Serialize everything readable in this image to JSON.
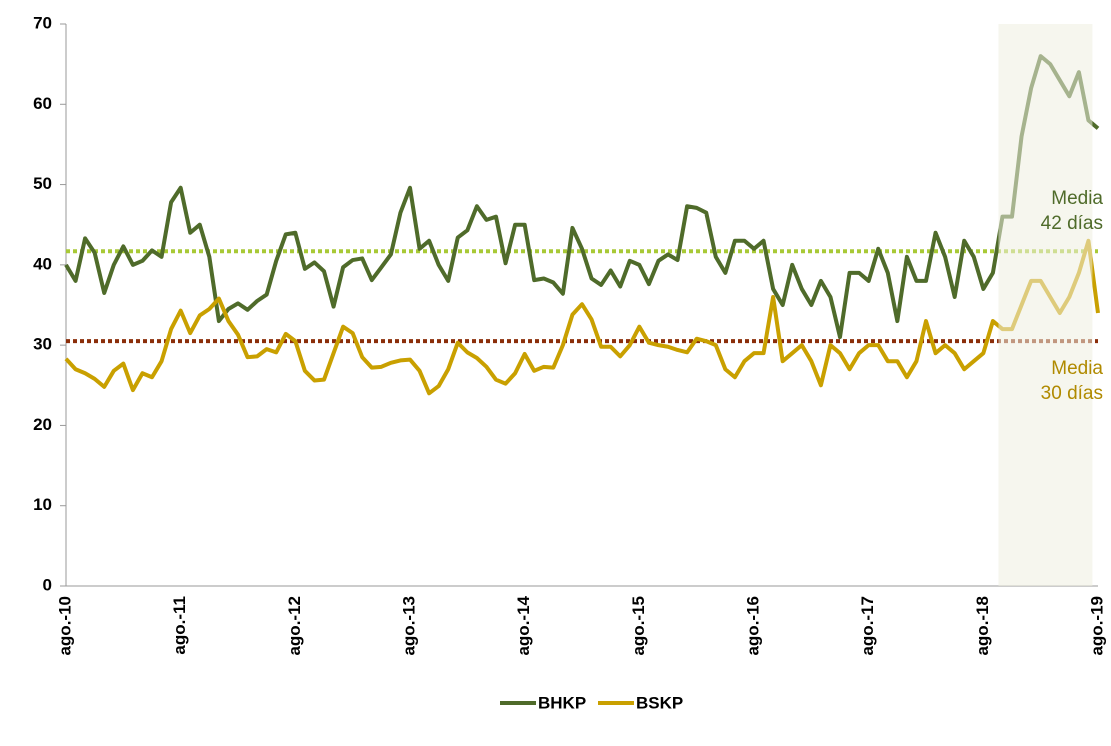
{
  "chart_data": {
    "type": "line",
    "categories": [
      "ago.-10",
      null,
      null,
      null,
      null,
      null,
      null,
      null,
      null,
      null,
      null,
      null,
      "ago.-11",
      null,
      null,
      null,
      null,
      null,
      null,
      null,
      null,
      null,
      null,
      null,
      "ago.-12",
      null,
      null,
      null,
      null,
      null,
      null,
      null,
      null,
      null,
      null,
      null,
      "ago.-13",
      null,
      null,
      null,
      null,
      null,
      null,
      null,
      null,
      null,
      null,
      null,
      "ago.-14",
      null,
      null,
      null,
      null,
      null,
      null,
      null,
      null,
      null,
      null,
      null,
      "ago.-15",
      null,
      null,
      null,
      null,
      null,
      null,
      null,
      null,
      null,
      null,
      null,
      "ago.-16",
      null,
      null,
      null,
      null,
      null,
      null,
      null,
      null,
      null,
      null,
      null,
      "ago.-17",
      null,
      null,
      null,
      null,
      null,
      null,
      null,
      null,
      null,
      null,
      null,
      "ago.-18",
      null,
      null,
      null,
      null,
      null,
      null,
      null,
      null,
      null,
      null,
      null,
      "ago.-19"
    ],
    "series": [
      {
        "name": "BHKP",
        "color": "#4f6b2a",
        "values": [
          40,
          38,
          43.3,
          41.5,
          36.5,
          40,
          42.3,
          40,
          40.5,
          41.8,
          41,
          47.8,
          49.6,
          44,
          45,
          41,
          33,
          34.5,
          35.2,
          34.4,
          35.5,
          36.3,
          40.5,
          43.8,
          44,
          39.5,
          40.3,
          39.2,
          34.8,
          39.7,
          40.6,
          40.8,
          38.1,
          39.7,
          41.3,
          46.5,
          49.6,
          42,
          43,
          40,
          38,
          43.4,
          44.3,
          47.3,
          45.6,
          46,
          40.2,
          45,
          45,
          38.1,
          38.3,
          37.8,
          36.4,
          44.6,
          42,
          38.3,
          37.5,
          39.3,
          37.3,
          40.5,
          40,
          37.6,
          40.5,
          41.3,
          40.6,
          47.3,
          47.1,
          46.5,
          41,
          39,
          43,
          43,
          42,
          43,
          37,
          35,
          40,
          37,
          35,
          38,
          36,
          31,
          39,
          39,
          38,
          42,
          39,
          33,
          41,
          38,
          38,
          44,
          41,
          36,
          43,
          41,
          37,
          39,
          46,
          46,
          56,
          62,
          66,
          65,
          63,
          61,
          64,
          58,
          57
        ]
      },
      {
        "name": "BSKP",
        "color": "#c9a000",
        "values": [
          28.3,
          27,
          26.5,
          25.8,
          24.8,
          26.8,
          27.7,
          24.4,
          26.5,
          26,
          28,
          32,
          34.3,
          31.5,
          33.7,
          34.5,
          35.8,
          33,
          31.3,
          28.5,
          28.6,
          29.5,
          29.1,
          31.4,
          30.5,
          26.8,
          25.6,
          25.7,
          29,
          32.3,
          31.5,
          28.5,
          27.2,
          27.3,
          27.8,
          28.1,
          28.2,
          26.8,
          24,
          24.9,
          27,
          30.3,
          29.1,
          28.4,
          27.3,
          25.7,
          25.2,
          26.5,
          28.9,
          26.8,
          27.3,
          27.2,
          30,
          33.8,
          35.1,
          33.2,
          29.8,
          29.8,
          28.6,
          30,
          32.3,
          30.3,
          30,
          29.8,
          29.4,
          29.1,
          30.8,
          30.5,
          30,
          27,
          26,
          28,
          29,
          29,
          36,
          28,
          29,
          30,
          28,
          25,
          30,
          29,
          27,
          29,
          30,
          30,
          28,
          28,
          26,
          28,
          33,
          29,
          30,
          29,
          27,
          28,
          29,
          33,
          32,
          32,
          35,
          38,
          38,
          36,
          34,
          36,
          39,
          43,
          34
        ]
      }
    ],
    "ylim": [
      0,
      70
    ],
    "yticks": [
      0,
      10,
      20,
      30,
      40,
      50,
      60,
      70
    ],
    "highlight": {
      "from": 98,
      "to": 107,
      "color": "#eeeee0"
    },
    "reference_lines": [
      {
        "value": 41.7,
        "color": "#a8c936"
      },
      {
        "value": 30.5,
        "color": "#8b2e0a"
      }
    ],
    "annotations": [
      {
        "lines": [
          "Media",
          "42 días"
        ],
        "color": "#4f6b2a"
      },
      {
        "lines": [
          "Media",
          "30 días"
        ],
        "color": "#b08a00"
      }
    ],
    "legend": "bottom"
  }
}
